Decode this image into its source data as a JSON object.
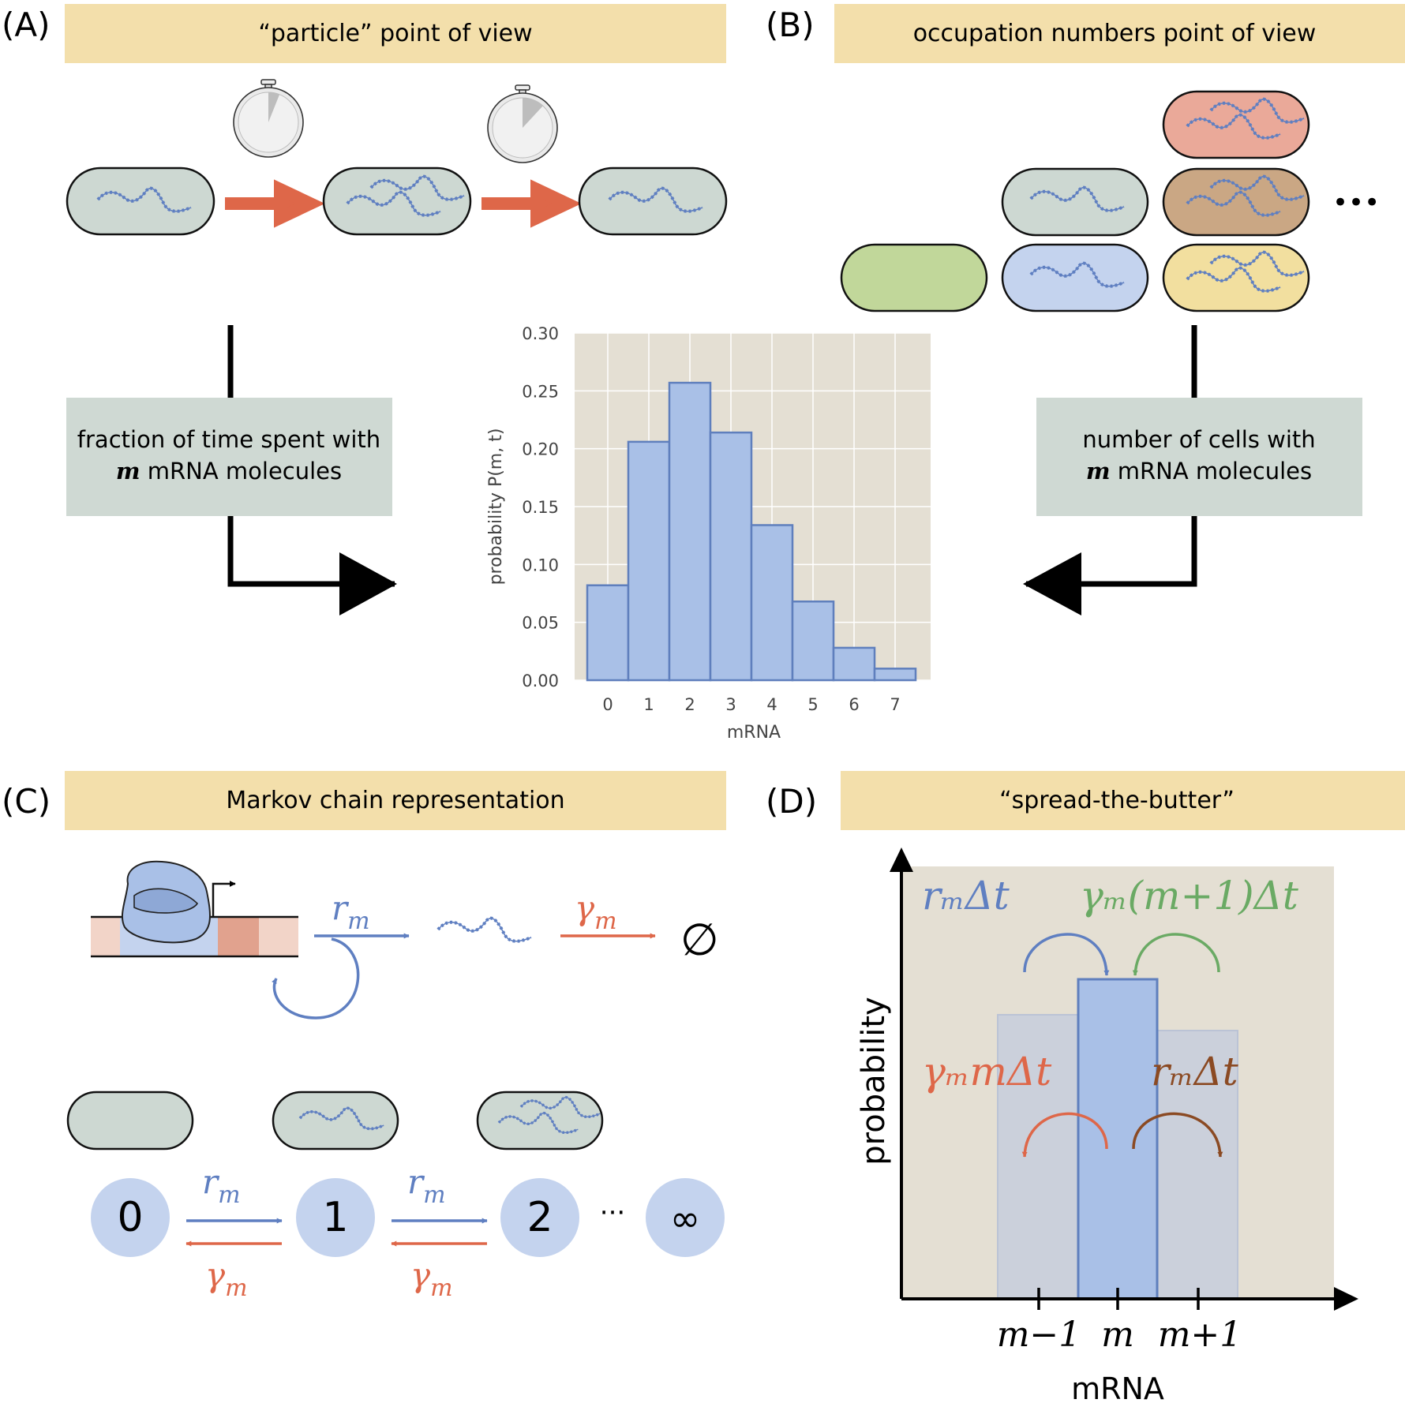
{
  "colors": {
    "header": "#f3dfab",
    "cell_gray": "#cdd8d2",
    "cell_green": "#c1d79a",
    "cell_blue": "#c4d3ee",
    "cell_salmon": "#eaa999",
    "cell_brown": "#caa784",
    "cell_yellow": "#f2df9f",
    "label_box": "#cfd9d3",
    "plot_bg": "#e4dfd3",
    "bar_fill": "#a9c0e7",
    "bar_stroke": "#5f7fbd",
    "mrna_blue": "#5f7fc1",
    "red_arrow": "#de6749",
    "state_circle": "#c4d3ee",
    "green": "#6aaa64",
    "brown": "#8b4a23"
  },
  "panelA": {
    "tag": "(A)",
    "title": "“particle” point of view",
    "label_line1": "fraction of time spent with",
    "label_m": "m",
    "label_line2": " mRNA molecules"
  },
  "panelB": {
    "tag": "(B)",
    "title": "occupation numbers point of view",
    "label_line1": "number of cells with",
    "label_m": "m",
    "label_line2": " mRNA molecules",
    "ellipsis": "•••"
  },
  "panelC": {
    "tag": "(C)",
    "title": "Markov chain representation",
    "rate_r": "r",
    "rate_gamma": "γ",
    "subscript": "m",
    "empty": "∅",
    "states": [
      "0",
      "1",
      "2",
      "∞"
    ],
    "dots": "···"
  },
  "panelD": {
    "tag": "(D)",
    "title": "“spread-the-butter”",
    "ylabel": "probability",
    "xlabel": "mRNA",
    "ticks": [
      "m−1",
      "m",
      "m+1"
    ],
    "in_left": "rₘΔt",
    "in_right": "γₘ(m+1)Δt",
    "out_left": "γₘmΔt",
    "out_right": "rₘΔt"
  },
  "chart_data": {
    "type": "bar",
    "categories": [
      "0",
      "1",
      "2",
      "3",
      "4",
      "5",
      "6",
      "7"
    ],
    "values": [
      0.082,
      0.206,
      0.257,
      0.214,
      0.134,
      0.068,
      0.028,
      0.01
    ],
    "xlabel": "mRNA",
    "ylabel": "probability P(m, t)",
    "ylim": [
      0,
      0.3
    ],
    "yticks": [
      "0.00",
      "0.05",
      "0.10",
      "0.15",
      "0.20",
      "0.25",
      "0.30"
    ],
    "grid": true
  }
}
